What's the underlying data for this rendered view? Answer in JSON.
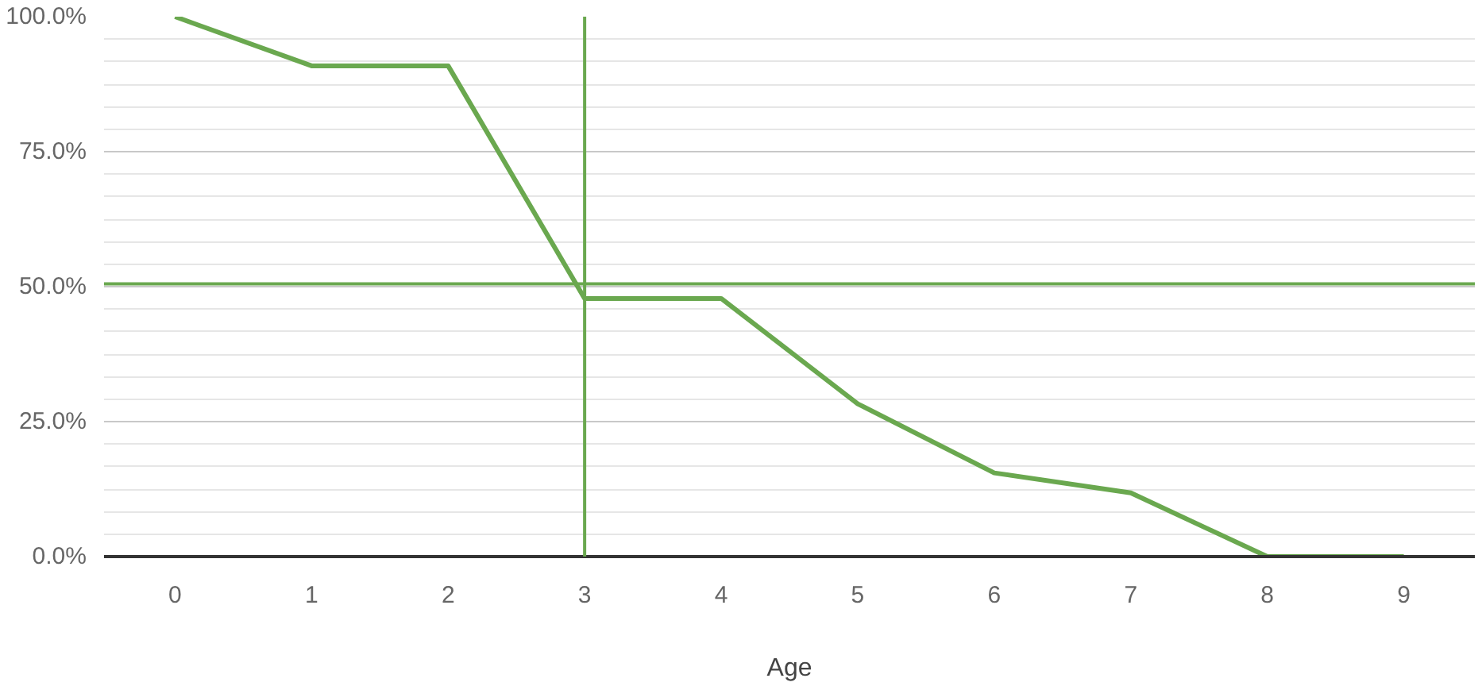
{
  "chart_data": {
    "type": "line",
    "xlabel": "Age",
    "categories": [
      "0",
      "1",
      "2",
      "3",
      "4",
      "5",
      "6",
      "7",
      "8",
      "9"
    ],
    "series": [
      {
        "color": "#6aa84f",
        "values": [
          100,
          90.9,
          90.9,
          47.8,
          47.8,
          28.3,
          15.5,
          11.8,
          0,
          0
        ]
      }
    ],
    "ylim": [
      0,
      100
    ],
    "yticks": [
      {
        "value": 0,
        "label": "0.0%"
      },
      {
        "value": 25,
        "label": "25.0%"
      },
      {
        "value": 50,
        "label": "50.0%"
      },
      {
        "value": 75,
        "label": "75.0%"
      },
      {
        "value": 100,
        "label": "100.0%"
      }
    ],
    "grid": "y",
    "marker": "none",
    "line_style": "solid",
    "ref_lines": [
      {
        "axis": "y",
        "value": 50.5,
        "color": "#6aa84f"
      },
      {
        "axis": "x",
        "value": "3",
        "color": "#6aa84f"
      }
    ]
  }
}
